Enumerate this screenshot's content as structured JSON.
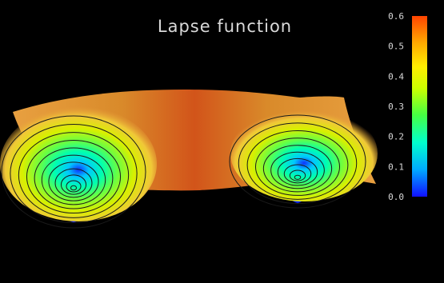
{
  "chart_data": {
    "type": "surface",
    "title": "Lapse function",
    "colorbar": {
      "min": 0.0,
      "max": 0.6,
      "ticks": [
        "0.6",
        "0.5",
        "0.4",
        "0.3",
        "0.2",
        "0.1",
        "0.0"
      ],
      "colormap": [
        "#0000ff",
        "#00aaff",
        "#00ffcc",
        "#44ff44",
        "#ccff00",
        "#ffee00",
        "#ffaa00",
        "#ff4400"
      ]
    },
    "surface_color": "#e07a1f",
    "wells": [
      {
        "name": "left",
        "min_value": 0.0
      },
      {
        "name": "right",
        "min_value": 0.0
      }
    ],
    "background": "#000000"
  }
}
